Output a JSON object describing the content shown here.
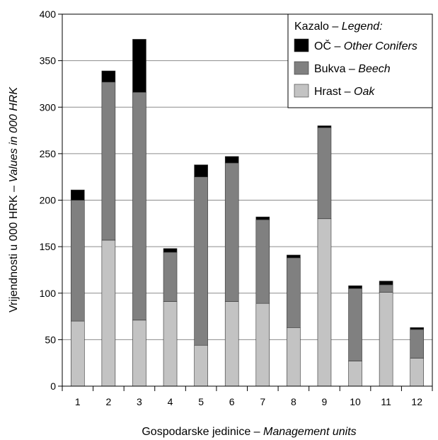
{
  "chart_data": {
    "type": "bar",
    "stacked": true,
    "categories": [
      "1",
      "2",
      "3",
      "4",
      "5",
      "6",
      "7",
      "8",
      "9",
      "10",
      "11",
      "12"
    ],
    "series": [
      {
        "name": "Hrast – Oak",
        "name_main": "Hrast – ",
        "name_it": "Oak",
        "color": "#c3c3c3",
        "values": [
          70,
          157,
          71,
          91,
          44,
          91,
          89,
          63,
          180,
          27,
          101,
          30
        ]
      },
      {
        "name": "Bukva – Beech",
        "name_main": "Bukva – ",
        "name_it": "Beech",
        "color": "#808080",
        "values": [
          130,
          170,
          245,
          53,
          181,
          149,
          90,
          75,
          98,
          78,
          8,
          31
        ]
      },
      {
        "name": "OČ – Other Conifers",
        "name_main": "OČ – ",
        "name_it": "Other Conifers",
        "color": "#000000",
        "values": [
          11,
          12,
          57,
          4,
          13,
          7,
          3,
          3,
          2,
          3,
          4,
          2
        ]
      }
    ],
    "ylim": [
      0,
      400
    ],
    "yticks": [
      0,
      50,
      100,
      150,
      200,
      250,
      300,
      350,
      400
    ],
    "xlabel_main": "Gospodarske jedinice – ",
    "xlabel_it": "Management units",
    "ylabel_main": "Vrijendnosti u 000 HRK – ",
    "ylabel_it": "Values in 000 HRK",
    "legend": {
      "title_main": "Kazalo – ",
      "title_it": "Legend:",
      "position": "top-right"
    },
    "grid": "horizontal"
  }
}
